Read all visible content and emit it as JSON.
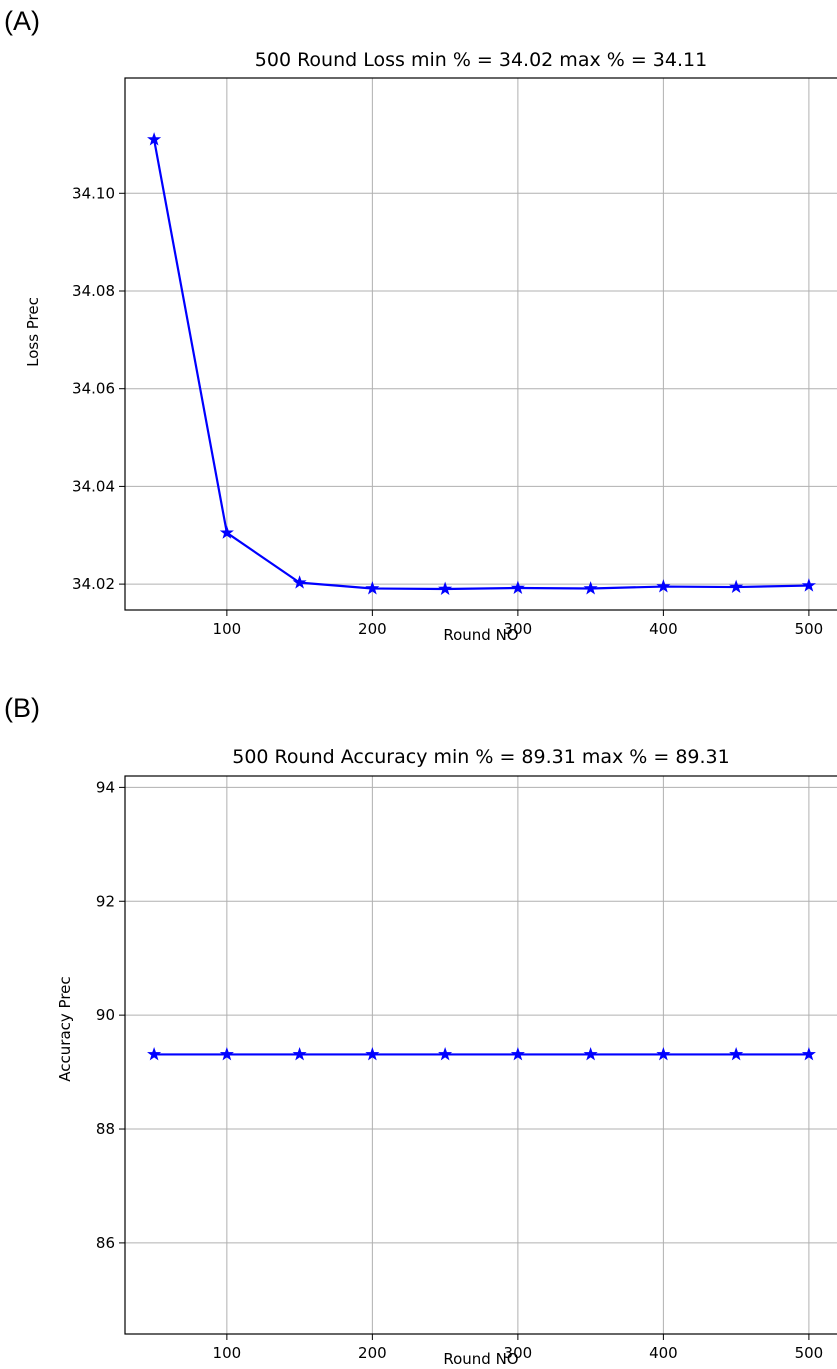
{
  "chart_data": [
    {
      "panel_label": "(A)",
      "type": "line",
      "title": "500 Round Loss  min % = 34.02 max % = 34.11",
      "xlabel": "Round NO",
      "ylabel": "Loss Prec",
      "x": [
        50,
        100,
        150,
        200,
        250,
        300,
        350,
        400,
        450,
        500
      ],
      "series": [
        {
          "values": [
            34.111,
            34.0305,
            34.0203,
            34.0191,
            34.019,
            34.0192,
            34.0191,
            34.0195,
            34.0194,
            34.0197
          ],
          "color": "#0000ff",
          "marker": "star"
        }
      ],
      "xlim": [
        30,
        520
      ],
      "ylim": [
        34.0147,
        34.1236
      ],
      "xticks": [
        100,
        200,
        300,
        400,
        500
      ],
      "xtick_labels": [
        "100",
        "200",
        "300",
        "400",
        "500"
      ],
      "yticks": [
        34.02,
        34.04,
        34.06,
        34.08,
        34.1
      ],
      "ytick_labels": [
        "34.02",
        "34.04",
        "34.06",
        "34.08",
        "34.10"
      ],
      "grid": true
    },
    {
      "panel_label": "(B)",
      "type": "line",
      "title": "500 Round Accuracy min % = 89.31 max % = 89.31",
      "xlabel": "Round NO",
      "ylabel": "Accuracy Prec",
      "x": [
        50,
        100,
        150,
        200,
        250,
        300,
        350,
        400,
        450,
        500
      ],
      "series": [
        {
          "values": [
            89.31,
            89.31,
            89.31,
            89.31,
            89.31,
            89.31,
            89.31,
            89.31,
            89.31,
            89.31
          ],
          "color": "#0000ff",
          "marker": "star"
        }
      ],
      "xlim": [
        30,
        520
      ],
      "ylim": [
        84.4,
        94.2
      ],
      "xticks": [
        100,
        200,
        300,
        400,
        500
      ],
      "xtick_labels": [
        "100",
        "200",
        "300",
        "400",
        "500"
      ],
      "yticks": [
        86,
        88,
        90,
        92,
        94
      ],
      "ytick_labels": [
        "86",
        "88",
        "90",
        "92",
        "94"
      ],
      "grid": true
    }
  ]
}
